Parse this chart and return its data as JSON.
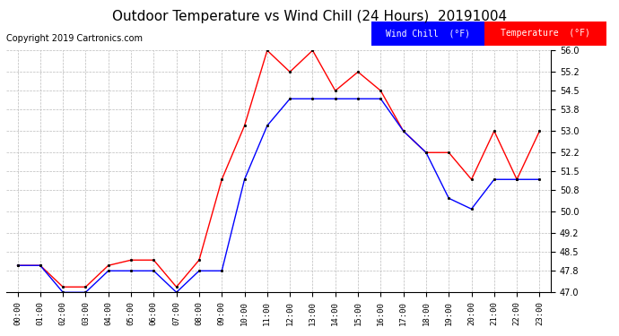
{
  "title": "Outdoor Temperature vs Wind Chill (24 Hours)  20191004",
  "copyright": "Copyright 2019 Cartronics.com",
  "legend_wind_chill": "Wind Chill  (°F)",
  "legend_temperature": "Temperature  (°F)",
  "x_labels": [
    "00:00",
    "01:00",
    "02:00",
    "03:00",
    "04:00",
    "05:00",
    "06:00",
    "07:00",
    "08:00",
    "09:00",
    "10:00",
    "11:00",
    "12:00",
    "13:00",
    "14:00",
    "15:00",
    "16:00",
    "17:00",
    "18:00",
    "19:00",
    "20:00",
    "21:00",
    "22:00",
    "23:00"
  ],
  "temperature": [
    48.0,
    48.0,
    47.2,
    47.2,
    48.0,
    48.2,
    48.2,
    47.2,
    48.2,
    51.2,
    53.2,
    56.0,
    55.2,
    56.0,
    54.5,
    55.2,
    54.5,
    53.0,
    52.2,
    52.2,
    51.2,
    53.0,
    51.2,
    53.0
  ],
  "wind_chill": [
    48.0,
    48.0,
    47.0,
    47.0,
    47.8,
    47.8,
    47.8,
    47.0,
    47.8,
    47.8,
    51.2,
    53.2,
    54.2,
    54.2,
    54.2,
    54.2,
    54.2,
    53.0,
    52.2,
    50.5,
    50.1,
    51.2,
    51.2,
    51.2
  ],
  "ylim": [
    47.0,
    56.0
  ],
  "y_ticks": [
    47.0,
    47.8,
    48.5,
    49.2,
    50.0,
    50.8,
    51.5,
    52.2,
    53.0,
    53.8,
    54.5,
    55.2,
    56.0
  ],
  "temp_color": "#ff0000",
  "wind_color": "#0000ff",
  "bg_color": "#ffffff",
  "grid_color": "#bbbbbb",
  "title_fontsize": 11,
  "copyright_fontsize": 7
}
